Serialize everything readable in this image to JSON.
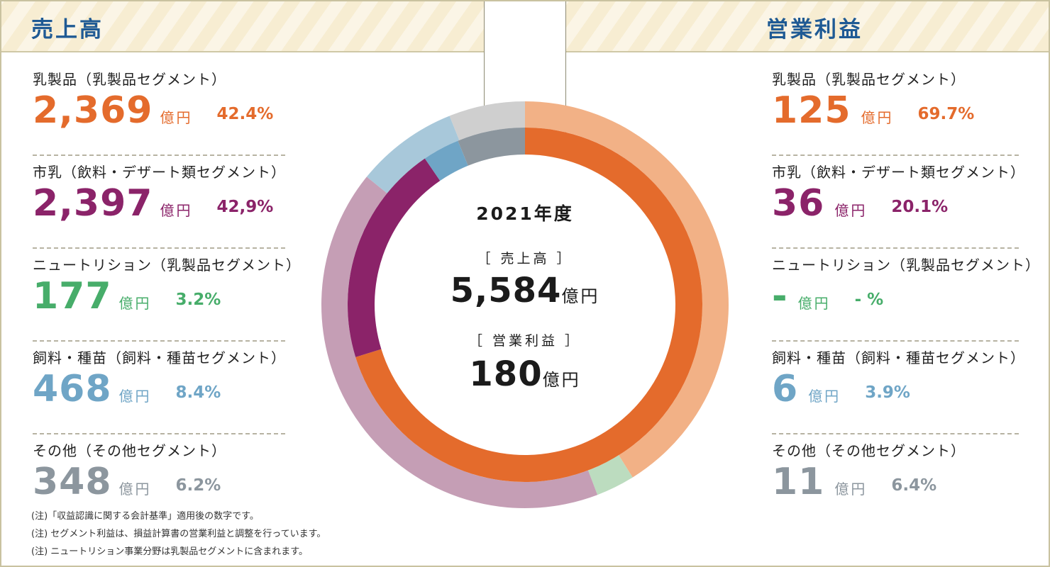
{
  "sales_header": "売上高",
  "profit_header": "営業利益",
  "sales_segments": [
    {
      "name": "乳製品（乳製品セグメント）",
      "amount": "2,369",
      "unit": "億円",
      "share": "42.4%",
      "color": "#e46b2c"
    },
    {
      "name": "市乳（飲料・デザート類セグメント）",
      "amount": "2,397",
      "unit": "億円",
      "share": "42,9%",
      "color": "#8b2369"
    },
    {
      "name": "ニュートリション（乳製品セグメント）",
      "amount": "177",
      "unit": "億円",
      "share": "3.2%",
      "color": "#47ad6a"
    },
    {
      "name": "飼料・種苗（飼料・種苗セグメント）",
      "amount": "468",
      "unit": "億円",
      "share": "8.4%",
      "color": "#6fa5c6"
    },
    {
      "name": "その他（その他セグメント）",
      "amount": "348",
      "unit": "億円",
      "share": "6.2%",
      "color": "#8c969e"
    }
  ],
  "profit_segments": [
    {
      "name": "乳製品（乳製品セグメント）",
      "amount": "125",
      "unit": "億円",
      "share": "69.7%",
      "color": "#e46b2c"
    },
    {
      "name": "市乳（飲料・デザート類セグメント）",
      "amount": "36",
      "unit": "億円",
      "share": "20.1%",
      "color": "#8b2369"
    },
    {
      "name": "ニュートリション（乳製品セグメント）",
      "amount": "-",
      "unit": "億円",
      "share": "- %",
      "color": "#47ad6a"
    },
    {
      "name": "飼料・種苗（飼料・種苗セグメント）",
      "amount": "6",
      "unit": "億円",
      "share": "3.9%",
      "color": "#6fa5c6"
    },
    {
      "name": "その他（その他セグメント）",
      "amount": "11",
      "unit": "億円",
      "share": "6.4%",
      "color": "#8c969e"
    }
  ],
  "center": {
    "year": "2021年度",
    "sales_label": "［ 売上高 ］",
    "sales_total": "5,584",
    "profit_label": "［ 営業利益 ］",
    "profit_total": "180",
    "unit": "億円"
  },
  "notes": [
    "(注)「収益認識に関する会計基準」適用後の数字です。",
    "(注) セグメント利益は、損益計算書の営業利益と調整を行っています。",
    "(注) ニュートリション事業分野は乳製品セグメントに含まれます。"
  ],
  "chart_data": {
    "type": "pie",
    "variant": "double-ring donut",
    "year": "2021年度",
    "rings": [
      {
        "name": "売上高",
        "position": "outer",
        "unit": "億円",
        "total": 5584,
        "slices": [
          {
            "label": "乳製品（乳製品セグメント）",
            "value": 2369,
            "share": 42.4,
            "color": "#f2b186"
          },
          {
            "label": "ニュートリション（乳製品セグメント）",
            "value": 177,
            "share": 3.2,
            "color": "#bcdcbf"
          },
          {
            "label": "市乳（飲料・デザート類セグメント）",
            "value": 2397,
            "share": 42.9,
            "color": "#c59eb5"
          },
          {
            "label": "飼料・種苗（飼料・種苗セグメント）",
            "value": 468,
            "share": 8.4,
            "color": "#a8c8da"
          },
          {
            "label": "その他（その他セグメント）",
            "value": 348,
            "share": 6.2,
            "color": "#cfcfcf"
          }
        ]
      },
      {
        "name": "営業利益",
        "position": "inner",
        "unit": "億円",
        "total": 180,
        "slices": [
          {
            "label": "乳製品（乳製品セグメント）",
            "value": 125,
            "share": 69.7,
            "color": "#e46b2c"
          },
          {
            "label": "市乳（飲料・デザート類セグメント）",
            "value": 36,
            "share": 20.1,
            "color": "#8b2369"
          },
          {
            "label": "飼料・種苗（飼料・種苗セグメント）",
            "value": 6,
            "share": 3.9,
            "color": "#6fa5c6"
          },
          {
            "label": "その他（その他セグメント）",
            "value": 11,
            "share": 6.4,
            "color": "#8c969e"
          }
        ]
      }
    ]
  }
}
